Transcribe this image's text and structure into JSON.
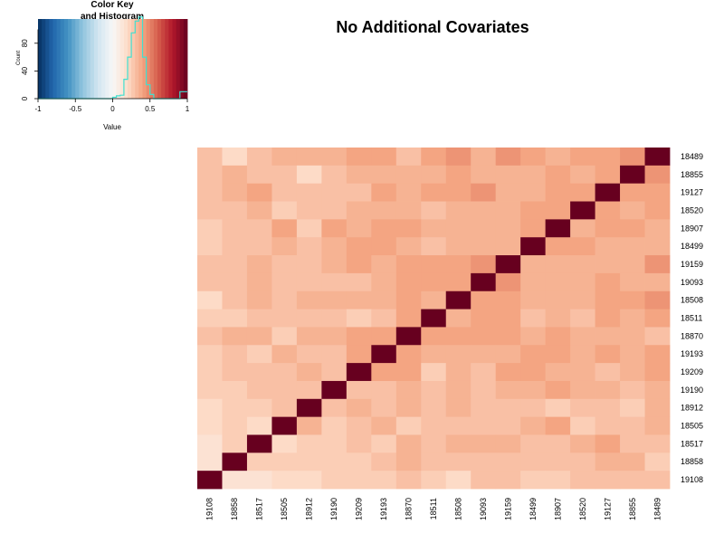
{
  "chart_data": {
    "type": "heatmap",
    "title": "No Additional Covariates",
    "row_labels": [
      "18489",
      "18855",
      "19127",
      "18520",
      "18907",
      "18499",
      "19159",
      "19093",
      "18508",
      "18511",
      "18870",
      "19193",
      "19209",
      "19190",
      "18912",
      "18505",
      "18517",
      "18858",
      "19108"
    ],
    "col_labels": [
      "19108",
      "18858",
      "18517",
      "18505",
      "18912",
      "19190",
      "19209",
      "19193",
      "18870",
      "18511",
      "18508",
      "19093",
      "19159",
      "18499",
      "18907",
      "18520",
      "19127",
      "18855",
      "18489"
    ],
    "values": [
      [
        0.3,
        0.2,
        0.3,
        0.35,
        0.35,
        0.35,
        0.4,
        0.4,
        0.3,
        0.4,
        0.45,
        0.35,
        0.45,
        0.4,
        0.35,
        0.4,
        0.4,
        0.45,
        1.0
      ],
      [
        0.3,
        0.35,
        0.3,
        0.3,
        0.2,
        0.3,
        0.35,
        0.35,
        0.35,
        0.35,
        0.4,
        0.35,
        0.35,
        0.35,
        0.4,
        0.35,
        0.4,
        1.0,
        0.45
      ],
      [
        0.3,
        0.35,
        0.4,
        0.3,
        0.3,
        0.3,
        0.3,
        0.4,
        0.35,
        0.4,
        0.4,
        0.45,
        0.35,
        0.35,
        0.4,
        0.4,
        1.0,
        0.4,
        0.4
      ],
      [
        0.3,
        0.3,
        0.35,
        0.25,
        0.3,
        0.3,
        0.35,
        0.35,
        0.35,
        0.3,
        0.35,
        0.35,
        0.35,
        0.4,
        0.4,
        1.0,
        0.4,
        0.35,
        0.4
      ],
      [
        0.25,
        0.3,
        0.3,
        0.4,
        0.25,
        0.4,
        0.35,
        0.4,
        0.4,
        0.35,
        0.35,
        0.35,
        0.35,
        0.4,
        1.0,
        0.35,
        0.4,
        0.4,
        0.35
      ],
      [
        0.25,
        0.3,
        0.3,
        0.35,
        0.3,
        0.35,
        0.4,
        0.4,
        0.35,
        0.3,
        0.35,
        0.35,
        0.35,
        1.0,
        0.4,
        0.4,
        0.35,
        0.35,
        0.35
      ],
      [
        0.3,
        0.3,
        0.35,
        0.3,
        0.3,
        0.35,
        0.4,
        0.35,
        0.4,
        0.4,
        0.4,
        0.45,
        1.0,
        0.35,
        0.35,
        0.35,
        0.35,
        0.35,
        0.45
      ],
      [
        0.3,
        0.3,
        0.35,
        0.3,
        0.3,
        0.3,
        0.3,
        0.35,
        0.4,
        0.4,
        0.4,
        1.0,
        0.45,
        0.35,
        0.35,
        0.35,
        0.4,
        0.35,
        0.35
      ],
      [
        0.2,
        0.3,
        0.35,
        0.3,
        0.35,
        0.35,
        0.35,
        0.35,
        0.4,
        0.35,
        1.0,
        0.4,
        0.4,
        0.35,
        0.35,
        0.35,
        0.4,
        0.4,
        0.45
      ],
      [
        0.25,
        0.25,
        0.3,
        0.3,
        0.3,
        0.3,
        0.25,
        0.3,
        0.4,
        1.0,
        0.35,
        0.4,
        0.4,
        0.3,
        0.35,
        0.3,
        0.4,
        0.35,
        0.4
      ],
      [
        0.3,
        0.35,
        0.35,
        0.25,
        0.35,
        0.35,
        0.4,
        0.4,
        1.0,
        0.4,
        0.4,
        0.4,
        0.4,
        0.35,
        0.4,
        0.35,
        0.35,
        0.35,
        0.3
      ],
      [
        0.25,
        0.3,
        0.25,
        0.35,
        0.3,
        0.3,
        0.4,
        1.0,
        0.4,
        0.35,
        0.35,
        0.35,
        0.35,
        0.4,
        0.4,
        0.35,
        0.4,
        0.35,
        0.4
      ],
      [
        0.25,
        0.3,
        0.3,
        0.3,
        0.35,
        0.3,
        1.0,
        0.4,
        0.4,
        0.25,
        0.35,
        0.3,
        0.4,
        0.4,
        0.35,
        0.35,
        0.3,
        0.35,
        0.4
      ],
      [
        0.25,
        0.25,
        0.3,
        0.3,
        0.3,
        1.0,
        0.3,
        0.3,
        0.35,
        0.3,
        0.35,
        0.3,
        0.35,
        0.35,
        0.4,
        0.35,
        0.35,
        0.3,
        0.35
      ],
      [
        0.2,
        0.25,
        0.25,
        0.3,
        1.0,
        0.3,
        0.35,
        0.3,
        0.35,
        0.3,
        0.35,
        0.3,
        0.3,
        0.3,
        0.25,
        0.3,
        0.3,
        0.25,
        0.35
      ],
      [
        0.2,
        0.25,
        0.2,
        1.0,
        0.35,
        0.25,
        0.3,
        0.35,
        0.25,
        0.3,
        0.3,
        0.3,
        0.3,
        0.35,
        0.4,
        0.25,
        0.3,
        0.3,
        0.35
      ],
      [
        0.15,
        0.25,
        1.0,
        0.2,
        0.25,
        0.25,
        0.3,
        0.25,
        0.35,
        0.3,
        0.35,
        0.35,
        0.35,
        0.3,
        0.3,
        0.35,
        0.4,
        0.3,
        0.3
      ],
      [
        0.15,
        1.0,
        0.25,
        0.25,
        0.25,
        0.25,
        0.25,
        0.3,
        0.35,
        0.3,
        0.3,
        0.3,
        0.3,
        0.3,
        0.3,
        0.3,
        0.35,
        0.35,
        0.25
      ],
      [
        1.0,
        0.15,
        0.15,
        0.2,
        0.2,
        0.25,
        0.25,
        0.25,
        0.3,
        0.25,
        0.2,
        0.3,
        0.3,
        0.25,
        0.25,
        0.3,
        0.3,
        0.3,
        0.3
      ]
    ],
    "color_key": {
      "title_line1": "Color Key",
      "title_line2": "and Histogram",
      "xlabel": "Value",
      "ylabel": "Count",
      "x_ticks": [
        "-1",
        "-0.5",
        "0",
        "0.5",
        "1"
      ],
      "x_tick_values": [
        -1,
        -0.5,
        0,
        0.5,
        1
      ],
      "y_ticks": [
        "0",
        "40",
        "80"
      ],
      "y_tick_values": [
        0,
        40,
        80
      ],
      "ylim": [
        0,
        115
      ],
      "xlim": [
        -1,
        1
      ],
      "histogram_line_color": "#40e0d0",
      "histogram_bins": [
        -1.0,
        -0.9,
        -0.8,
        -0.7,
        -0.6,
        -0.5,
        -0.4,
        -0.3,
        -0.2,
        -0.1,
        0.0,
        0.05,
        0.1,
        0.15,
        0.2,
        0.25,
        0.3,
        0.35,
        0.4,
        0.45,
        0.5,
        0.55,
        0.6,
        0.7,
        0.8,
        0.9,
        1.0
      ],
      "histogram_counts": [
        0,
        0,
        0,
        0,
        0,
        0,
        0,
        0,
        0,
        0,
        2,
        4,
        5,
        28,
        60,
        95,
        112,
        118,
        60,
        20,
        6,
        0,
        0,
        0,
        0,
        10
      ]
    },
    "palette": [
      "#053061",
      "#2166ac",
      "#4393c3",
      "#92c5de",
      "#d1e5f0",
      "#f7f7f7",
      "#fddbc7",
      "#f4a582",
      "#d6604d",
      "#b2182b",
      "#67001f"
    ]
  }
}
